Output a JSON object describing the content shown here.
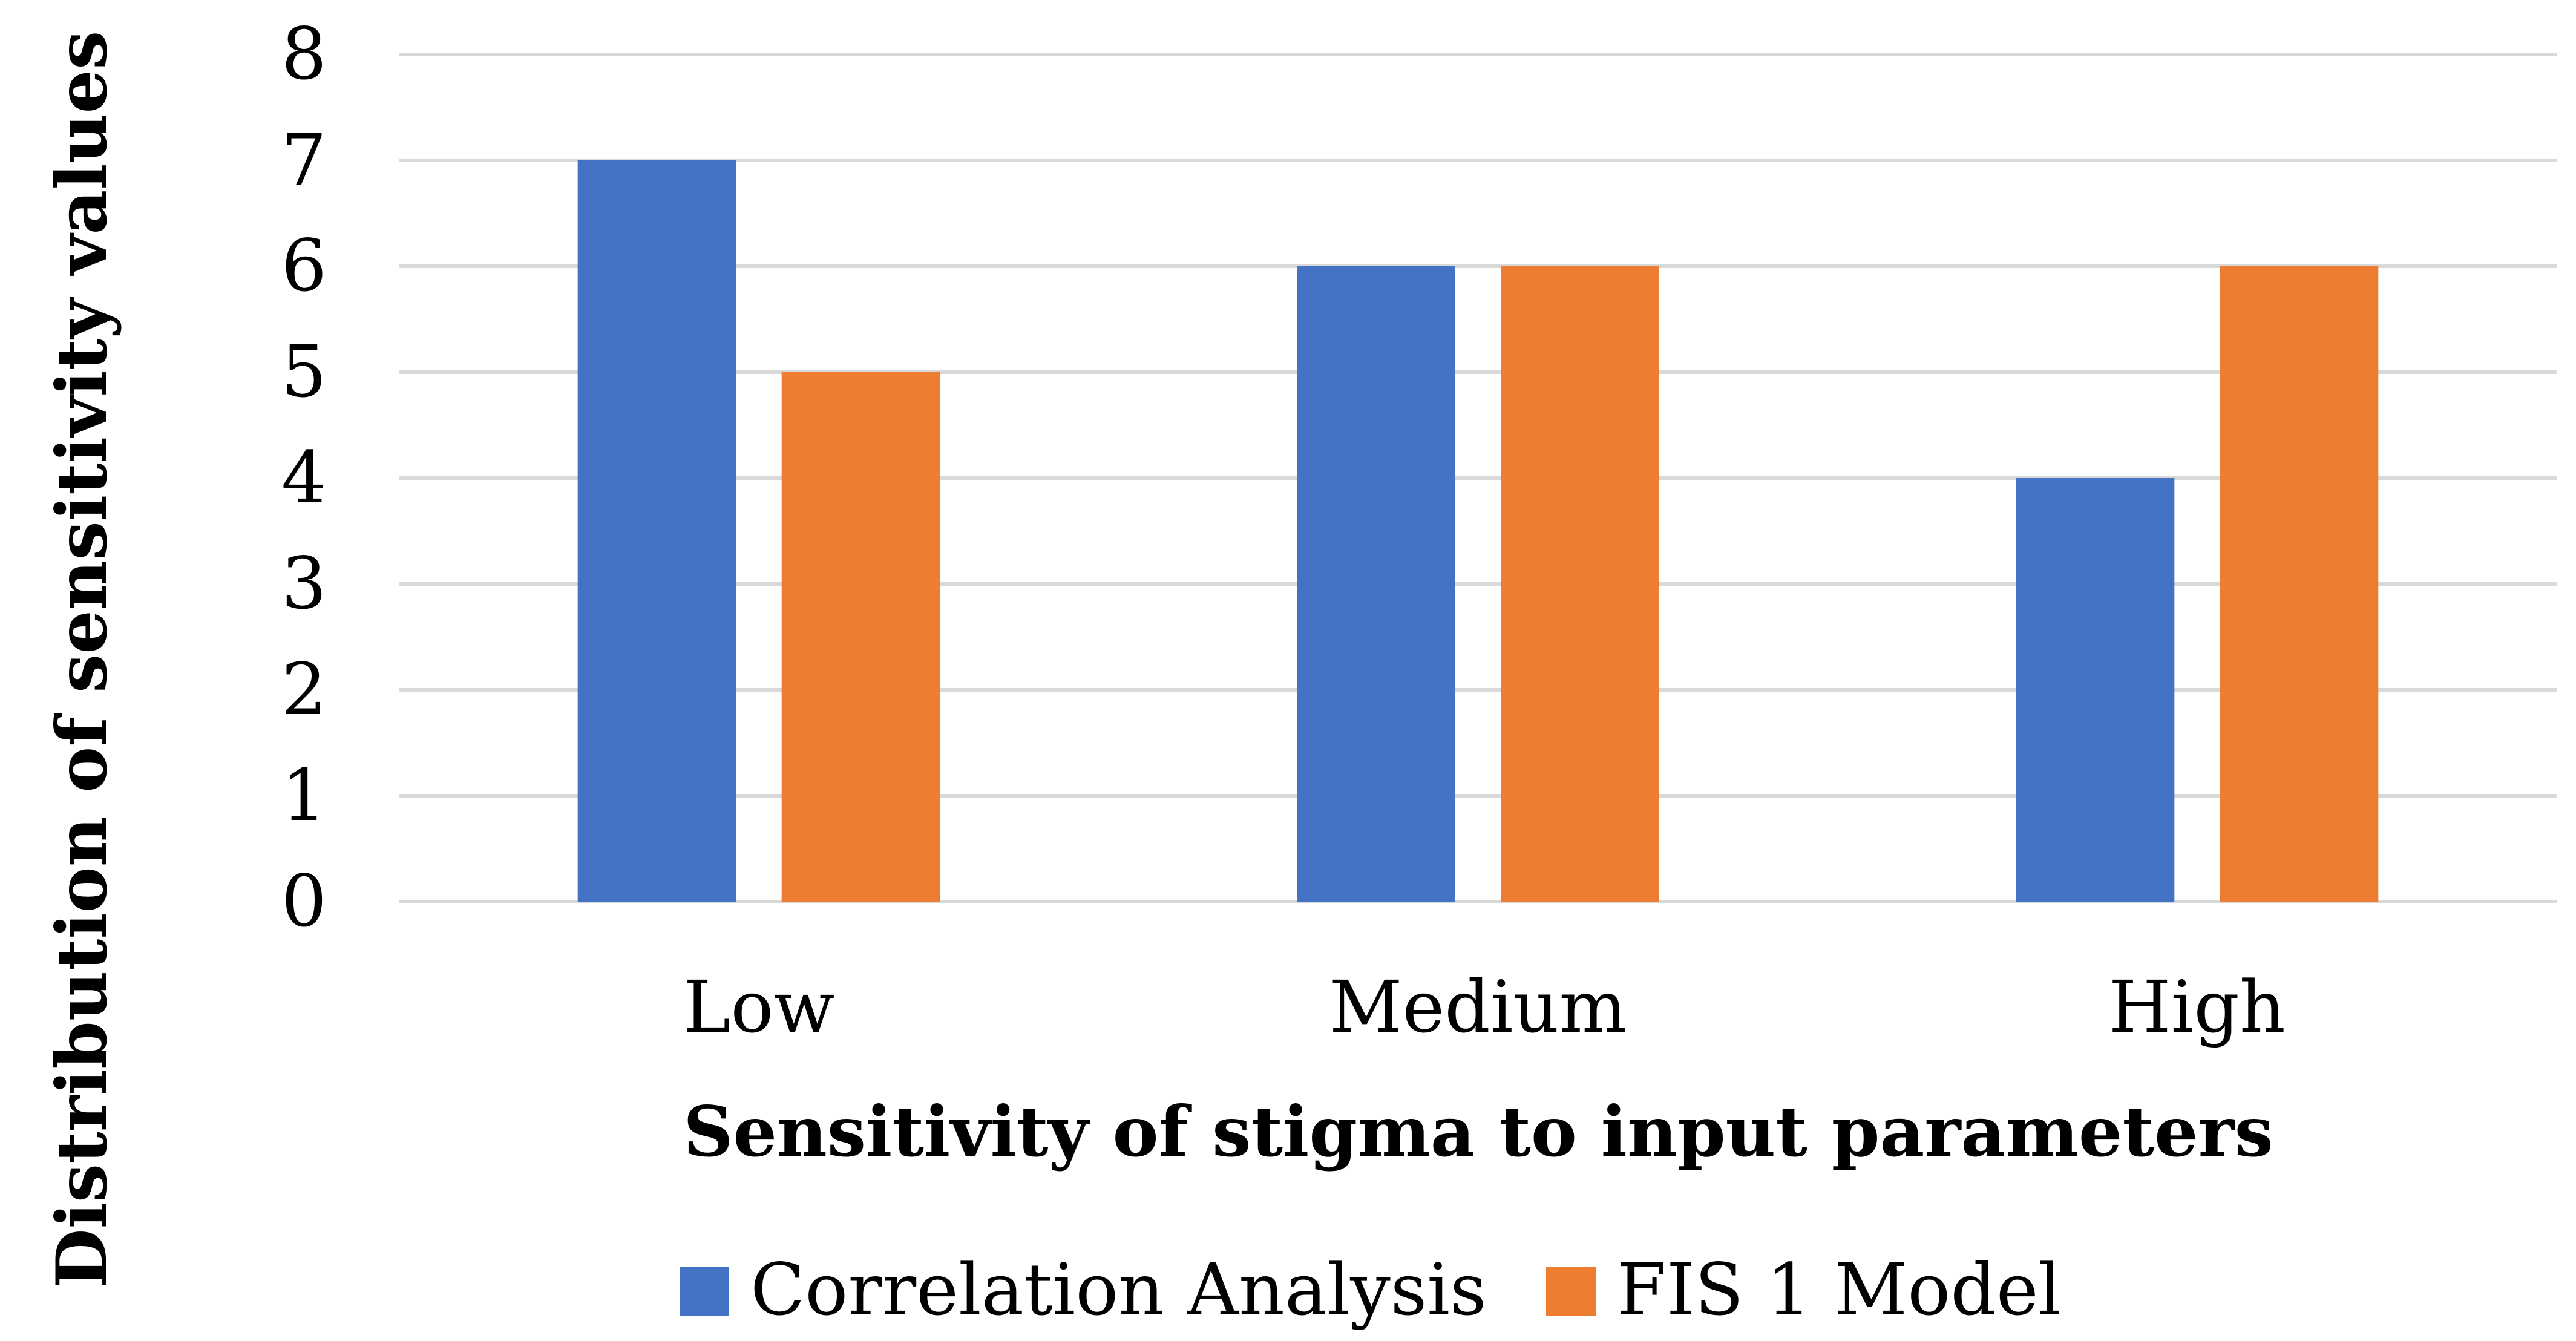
{
  "chart_data": {
    "type": "bar",
    "title": "",
    "xlabel": "Sensitivity of stigma to input parameters",
    "ylabel": "Distribution of sensitivity values",
    "categories": [
      "Low",
      "Medium",
      "High"
    ],
    "series": [
      {
        "name": "Correlation Analysis",
        "values": [
          7,
          6,
          4
        ],
        "color": "#4472C4"
      },
      {
        "name": "FIS 1 Model",
        "values": [
          5,
          6,
          6
        ],
        "color": "#ED7D31"
      }
    ],
    "ylim": [
      0,
      8
    ],
    "yticks": [
      "0",
      "1",
      "2",
      "3",
      "4",
      "5",
      "6",
      "7",
      "8"
    ],
    "grid": true,
    "gridColor": "#D9D9D9",
    "legend_position": "bottom"
  }
}
